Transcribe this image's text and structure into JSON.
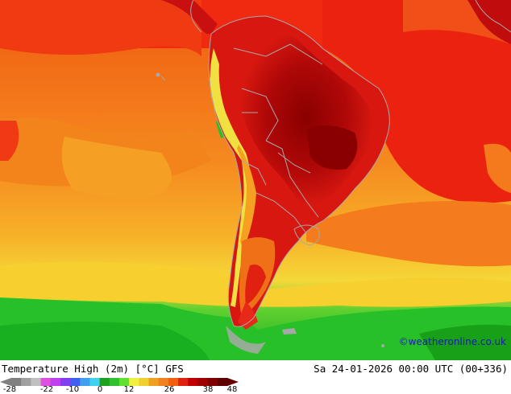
{
  "map": {
    "title": "Temperature High (2m) [°C] GFS",
    "valid_time": "Sa 24-01-2026 00:00 UTC (00+336)",
    "credit": "©weatheronline.co.uk"
  },
  "legend": {
    "ticks": [
      "-28",
      "-22",
      "-10",
      "0",
      "12",
      "26",
      "38",
      "48"
    ],
    "colors": [
      "#808080",
      "#a0a0a0",
      "#c0c0c0",
      "#e050e0",
      "#c040f0",
      "#8040f0",
      "#4060f0",
      "#40a0f0",
      "#40d0f0",
      "#20a020",
      "#30c030",
      "#60e030",
      "#f0f040",
      "#f0d030",
      "#f0a020",
      "#f08020",
      "#f06010",
      "#e02010",
      "#c00000",
      "#a00000",
      "#800000",
      "#600000"
    ],
    "region_colors": {
      "ocean_warm": "#f07018",
      "ocean_mid": "#f5a020",
      "ocean_cool": "#f7d030",
      "cold_green": "#28c028",
      "hot_red": "#e81c10",
      "very_hot": "#b80808",
      "extreme": "#900000",
      "andes_yellow": "#f0e040",
      "border": "#a0a0a0"
    }
  }
}
